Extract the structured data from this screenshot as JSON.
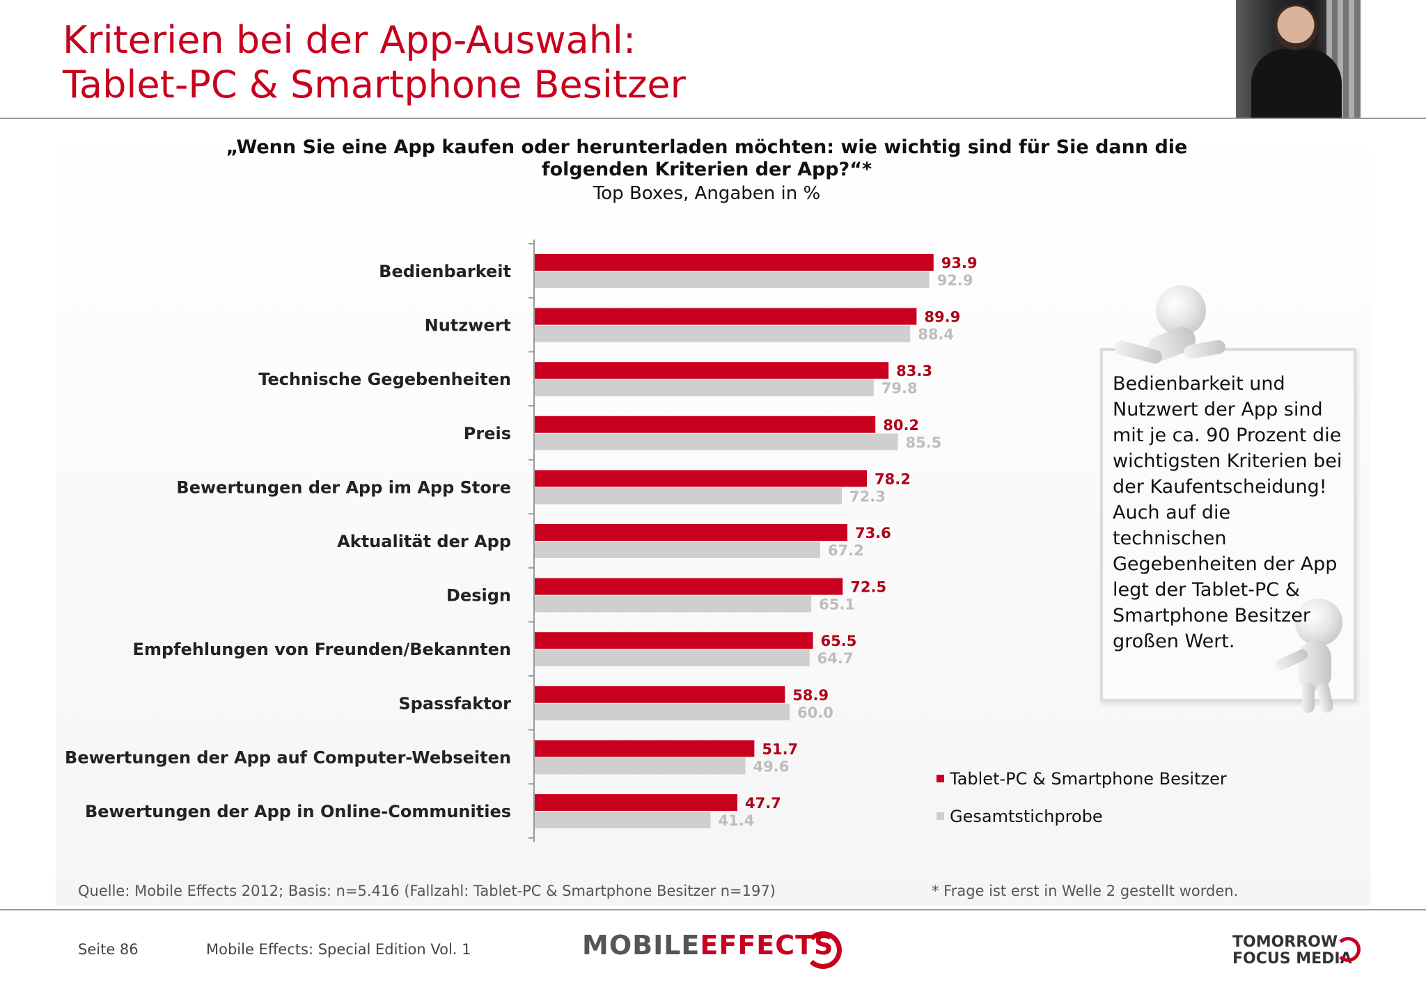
{
  "header": {
    "title_line1": "Kriterien bei der App-Auswahl:",
    "title_line2": "Tablet-PC & Smartphone Besitzer"
  },
  "question": {
    "line1": "„Wenn Sie eine App kaufen oder herunterladen möchten: wie wichtig sind für Sie dann die",
    "line2": "folgenden Kriterien der App?“*",
    "sub": "Top Boxes, Angaben in %"
  },
  "chart_data": {
    "type": "bar",
    "orientation": "horizontal",
    "categories": [
      "Bedienbarkeit",
      "Nutzwert",
      "Technische Gegebenheiten",
      "Preis",
      "Bewertungen der App im App Store",
      "Aktualität der App",
      "Design",
      "Empfehlungen von Freunden/Bekannten",
      "Spassfaktor",
      "Bewertungen der App auf Computer-Webseiten",
      "Bewertungen der App in Online-Communities"
    ],
    "series": [
      {
        "name": "Tablet-PC & Smartphone Besitzer",
        "color": "#c8001e",
        "label_color": "#b0001a",
        "values": [
          93.9,
          89.9,
          83.3,
          80.2,
          78.2,
          73.6,
          72.5,
          65.5,
          58.9,
          51.7,
          47.7
        ],
        "labels": [
          "93.9",
          "89.9",
          "83.3",
          "80.2",
          "78.2",
          "73.6",
          "72.5",
          "65.5",
          "58.9",
          "51.7",
          "47.7"
        ]
      },
      {
        "name": "Gesamtstichprobe",
        "color": "#cfcfcf",
        "label_color": "#bdbdbd",
        "values": [
          92.9,
          88.4,
          79.8,
          85.5,
          72.3,
          67.2,
          65.1,
          64.7,
          60.0,
          49.6,
          41.4
        ],
        "labels": [
          "92.9",
          "88.4",
          "79.8",
          "85.5",
          "72.3",
          "67.2",
          "65.1",
          "64.7",
          "60.0",
          "49.6",
          "41.4"
        ]
      }
    ],
    "xlim": [
      0,
      100
    ],
    "legend_position": "bottom-right",
    "grid": false
  },
  "callout": {
    "text": "Bedienbarkeit und Nutzwert der App sind mit je ca. 90 Prozent die wichtigsten Kriterien bei der Kaufentscheidung! Auch auf die technischen Gegebenheiten der App legt der Tablet-PC & Smartphone Besitzer großen Wert."
  },
  "footer": {
    "source": "Quelle: Mobile Effects 2012; Basis: n=5.416 (Fallzahl: Tablet-PC & Smartphone Besitzer n=197)",
    "footnote": "* Frage ist erst in Welle 2 gestellt worden.",
    "page": "Seite 86",
    "edition": "Mobile Effects: Special Edition Vol. 1",
    "logo_mobile": "MOBILE",
    "logo_effects": "EFFECTS",
    "logo_tfm_line1": "TOMORROW",
    "logo_tfm_line2": "FOCUS MEDIA"
  }
}
